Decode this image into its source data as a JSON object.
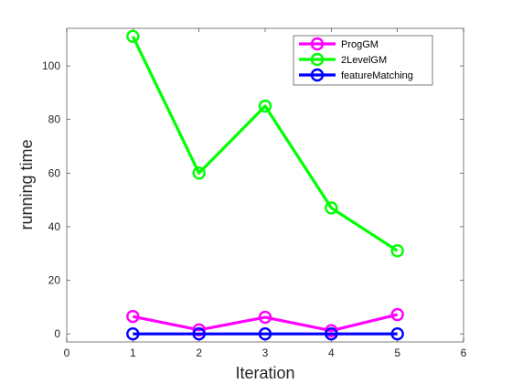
{
  "chart_data": {
    "type": "line",
    "title": "",
    "xlabel": "Iteration",
    "ylabel": "running time",
    "xlim": [
      0,
      6
    ],
    "ylim": [
      -3,
      114
    ],
    "xticks": [
      0,
      1,
      2,
      3,
      4,
      5,
      6
    ],
    "yticks": [
      0,
      20,
      40,
      60,
      80,
      100
    ],
    "grid": false,
    "legend_position": "top-right",
    "x": [
      1,
      2,
      3,
      4,
      5
    ],
    "series": [
      {
        "name": "ProgGM",
        "color": "#ff00ff",
        "marker": "circle",
        "values": [
          6.5,
          1.5,
          6.2,
          1.2,
          7.2
        ]
      },
      {
        "name": "2LevelGM",
        "color": "#00ff00",
        "marker": "circle",
        "values": [
          111,
          60,
          85,
          47,
          31
        ]
      },
      {
        "name": "featureMatching",
        "color": "#0000ff",
        "marker": "circle",
        "values": [
          0,
          0,
          0,
          0,
          0
        ]
      }
    ]
  }
}
